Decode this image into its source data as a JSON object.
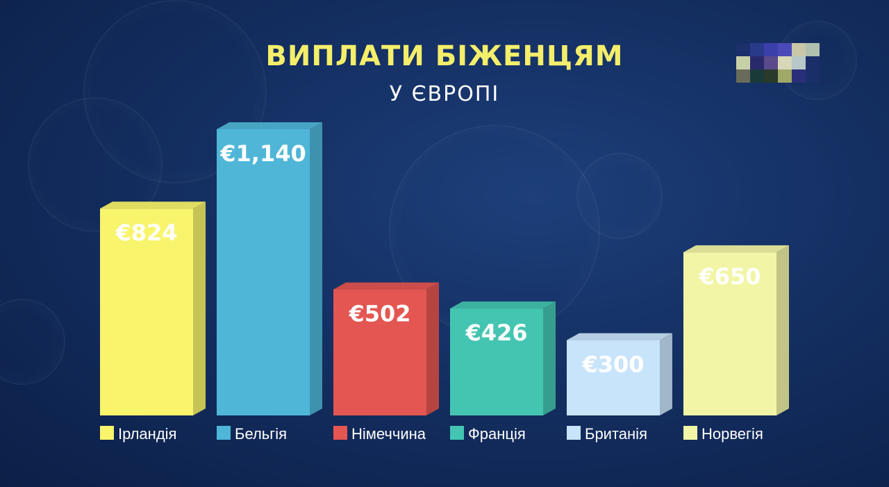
{
  "header": {
    "title": "ВИПЛАТИ БІЖЕНЦЯМ",
    "subtitle": "У ЄВРОПІ"
  },
  "logo": {
    "icon": "pixelated-logo-icon",
    "colors": [
      "#1b2f6b",
      "#2a3a8a",
      "#3a3faa",
      "#4a4ab8",
      "#c8c8a8",
      "#b0c0b0",
      "#c8d0a8",
      "#2a2a6a",
      "#5a4a8a",
      "#d8d8b8",
      "#b8c8c8",
      "#1a2f6a",
      "#6a6a5a",
      "#1a3a3a",
      "#2a3a2a",
      "#a0a868",
      "#2a2f7a",
      "#1a2f6a"
    ]
  },
  "chart_data": {
    "type": "bar",
    "categories": [
      "Ірландія",
      "Бельгія",
      "Німеччина",
      "Франція",
      "Британія",
      "Норвегія"
    ],
    "values": [
      824,
      1140,
      502,
      426,
      300,
      650
    ],
    "data_labels": [
      "€824",
      "€1,140",
      "€502",
      "€426",
      "€300",
      "€650"
    ],
    "colors": [
      "#f8f46c",
      "#4fb6d8",
      "#e35652",
      "#44c5b2",
      "#c8e4fb",
      "#f2f5a6"
    ],
    "title": "ВИПЛАТИ БІЖЕНЦЯМ",
    "subtitle": "У ЄВРОПІ",
    "xlabel": "",
    "ylabel": "",
    "ylim": [
      0,
      1140
    ],
    "grid": false,
    "legend": "bottom",
    "style": "3d-bar"
  }
}
